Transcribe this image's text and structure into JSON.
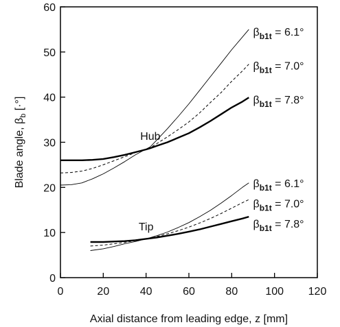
{
  "chart_data": {
    "type": "line",
    "title": "",
    "xlabel": "Axial distance from leading edge, z [mm]",
    "ylabel": "Blade angle, β",
    "ylabel_sub": "b",
    "ylabel_unit": " [·°]",
    "xlim": [
      0,
      120
    ],
    "ylim": [
      0,
      60
    ],
    "xticks": [
      0,
      20,
      40,
      60,
      80,
      100,
      120
    ],
    "yticks": [
      0,
      10,
      20,
      30,
      40,
      50,
      60
    ],
    "grid": false,
    "series": [
      {
        "name": "Hub, β_b1t = 6.1°",
        "group": "hub",
        "style": "thin",
        "x": [
          0,
          5,
          10,
          15,
          20,
          25,
          30,
          35,
          40,
          42,
          45,
          50,
          55,
          60,
          65,
          70,
          75,
          80,
          85,
          88
        ],
        "y": [
          20.5,
          20.6,
          21.0,
          21.9,
          23.0,
          24.3,
          25.7,
          27.2,
          28.5,
          29.0,
          30.5,
          33.0,
          35.7,
          38.5,
          41.5,
          44.5,
          47.5,
          50.5,
          53.3,
          55.0
        ]
      },
      {
        "name": "Hub, β_b1t = 7.0°",
        "group": "hub",
        "style": "dashed",
        "x": [
          0,
          5,
          10,
          15,
          20,
          25,
          30,
          35,
          40,
          42,
          45,
          50,
          55,
          60,
          65,
          70,
          75,
          80,
          85,
          88
        ],
        "y": [
          23.2,
          23.3,
          23.6,
          24.2,
          25.0,
          25.9,
          26.8,
          27.7,
          28.5,
          28.8,
          29.7,
          31.2,
          32.8,
          34.5,
          36.5,
          38.8,
          41.0,
          43.5,
          45.8,
          47.3
        ]
      },
      {
        "name": "Hub, β_b1t = 7.8°",
        "group": "hub",
        "style": "thick",
        "x": [
          0,
          5,
          10,
          15,
          20,
          25,
          30,
          35,
          40,
          42,
          45,
          50,
          55,
          60,
          65,
          70,
          75,
          80,
          85,
          88
        ],
        "y": [
          26.0,
          26.0,
          26.0,
          26.1,
          26.3,
          26.7,
          27.2,
          27.8,
          28.4,
          28.7,
          29.2,
          30.0,
          31.0,
          32.0,
          33.3,
          34.7,
          36.2,
          37.7,
          39.0,
          39.9
        ]
      },
      {
        "name": "Tip, β_b1t = 6.1°",
        "group": "tip",
        "style": "thin",
        "x": [
          14,
          20,
          25,
          30,
          35,
          40,
          45,
          50,
          55,
          60,
          65,
          70,
          75,
          80,
          85,
          88
        ],
        "y": [
          6.0,
          6.4,
          6.9,
          7.5,
          8.0,
          8.6,
          9.3,
          10.1,
          11.1,
          12.2,
          13.5,
          14.9,
          16.5,
          18.2,
          20.0,
          21.0
        ]
      },
      {
        "name": "Tip, β_b1t = 7.0°",
        "group": "tip",
        "style": "dashed",
        "x": [
          14,
          20,
          25,
          30,
          35,
          40,
          45,
          50,
          55,
          60,
          65,
          70,
          75,
          80,
          85,
          88
        ],
        "y": [
          7.0,
          7.2,
          7.5,
          7.8,
          8.2,
          8.6,
          9.1,
          9.7,
          10.4,
          11.2,
          12.1,
          13.1,
          14.2,
          15.4,
          16.6,
          17.3
        ]
      },
      {
        "name": "Tip, β_b1t = 7.8°",
        "group": "tip",
        "style": "thick",
        "x": [
          14,
          20,
          25,
          30,
          35,
          40,
          45,
          50,
          55,
          60,
          65,
          70,
          75,
          80,
          85,
          88
        ],
        "y": [
          7.9,
          7.9,
          8.0,
          8.1,
          8.3,
          8.6,
          8.9,
          9.3,
          9.7,
          10.2,
          10.7,
          11.3,
          11.9,
          12.5,
          13.1,
          13.5
        ]
      }
    ],
    "annotations": [
      {
        "text": "Hub",
        "x": 42,
        "y": 30.5
      },
      {
        "text": "Tip",
        "x": 40,
        "y": 10.5
      }
    ],
    "curve_labels": [
      {
        "prefix": "β",
        "sub": "b1t",
        "value": " = 6.1°",
        "x": 90,
        "y": 54.5
      },
      {
        "prefix": "β",
        "sub": "b1t",
        "value": " = 7.0°",
        "x": 90,
        "y": 47.0
      },
      {
        "prefix": "β",
        "sub": "b1t",
        "value": " = 7.8°",
        "x": 90,
        "y": 39.5
      },
      {
        "prefix": "β",
        "sub": "b1t",
        "value": " = 6.1°",
        "x": 90,
        "y": 21.0
      },
      {
        "prefix": "β",
        "sub": "b1t",
        "value": " = 7.0°",
        "x": 90,
        "y": 16.5
      },
      {
        "prefix": "β",
        "sub": "b1t",
        "value": " = 7.8°",
        "x": 90,
        "y": 12.0
      }
    ]
  }
}
